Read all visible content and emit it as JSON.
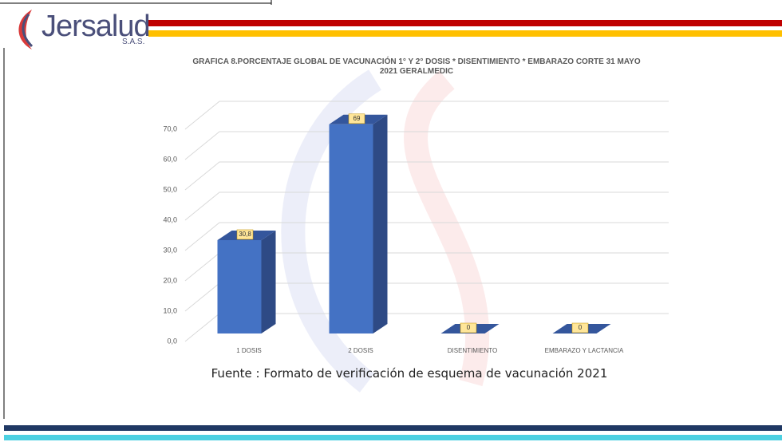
{
  "header": {
    "logo": "Jersalud",
    "logo_sub": "S.A.S."
  },
  "chart_data": {
    "type": "bar3d",
    "title": "GRAFICA 8.PORCENTAJE GLOBAL DE VACUNACIÓN 1° Y 2° DOSIS * DISENTIMIENTO * EMBARAZO CORTE 31 MAYO 2021 GERALMEDIC",
    "categories": [
      "1 DOSIS",
      "2 DOSIS",
      "DISENTIMIENTO",
      "EMBARAZO Y LACTANCIA"
    ],
    "values": [
      30.8,
      69,
      0,
      0
    ],
    "value_labels": [
      "30,8",
      "69",
      "0",
      "0"
    ],
    "color": "#4472c4",
    "ylim": [
      0,
      70
    ],
    "yticks": [
      {
        "value": 0,
        "label": "0,0"
      },
      {
        "value": 10,
        "label": "10,0"
      },
      {
        "value": 20,
        "label": "20,0"
      },
      {
        "value": 30,
        "label": "30,0"
      },
      {
        "value": 40,
        "label": "40,0"
      },
      {
        "value": 50,
        "label": "50,0"
      },
      {
        "value": 60,
        "label": "60,0"
      },
      {
        "value": 70,
        "label": "70,0"
      }
    ],
    "grid": true
  },
  "source": "Fuente : Formato de verificación de esquema de vacunación 2021"
}
